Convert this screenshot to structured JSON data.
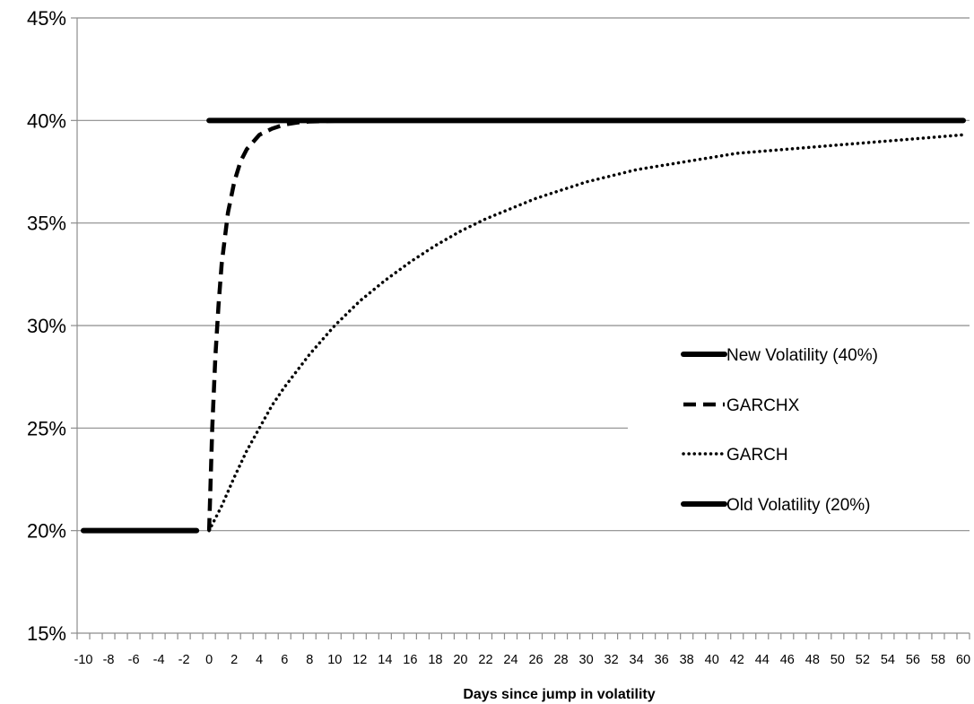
{
  "chart_data": {
    "type": "line",
    "title": "",
    "xlabel": "Days since jump in volatility",
    "ylabel": "",
    "xlim": [
      -10.5,
      60.5
    ],
    "ylim": [
      0.15,
      0.45
    ],
    "grid": true,
    "y_ticks": [
      {
        "value": 0.15,
        "label": "15%"
      },
      {
        "value": 0.2,
        "label": "20%"
      },
      {
        "value": 0.25,
        "label": "25%"
      },
      {
        "value": 0.3,
        "label": "30%"
      },
      {
        "value": 0.35,
        "label": "35%"
      },
      {
        "value": 0.4,
        "label": "40%"
      },
      {
        "value": 0.45,
        "label": "45%"
      }
    ],
    "x_ticks": [
      -10,
      -8,
      -6,
      -4,
      -2,
      0,
      2,
      4,
      6,
      8,
      10,
      12,
      14,
      16,
      18,
      20,
      22,
      24,
      26,
      28,
      30,
      32,
      34,
      36,
      38,
      40,
      42,
      44,
      46,
      48,
      50,
      52,
      54,
      56,
      58,
      60
    ],
    "legend_position": "center-right",
    "series": [
      {
        "name": "New Volatility (40%)",
        "style": "solid-thick",
        "color": "#000000",
        "x": [
          0,
          60
        ],
        "y": [
          0.4,
          0.4
        ]
      },
      {
        "name": "GARCHX",
        "style": "dashed",
        "color": "#000000",
        "x": [
          0,
          0.25,
          0.5,
          0.75,
          1,
          1.5,
          2,
          2.5,
          3,
          4,
          5,
          6,
          7,
          8,
          10,
          15,
          20,
          30,
          40,
          50,
          60
        ],
        "y": [
          0.2,
          0.25,
          0.285,
          0.31,
          0.33,
          0.355,
          0.37,
          0.38,
          0.386,
          0.393,
          0.396,
          0.398,
          0.399,
          0.3995,
          0.3998,
          0.4,
          0.4,
          0.4,
          0.4,
          0.4,
          0.4
        ]
      },
      {
        "name": "GARCH",
        "style": "dotted",
        "color": "#000000",
        "x": [
          0,
          1,
          2,
          3,
          4,
          5,
          6,
          8,
          10,
          12,
          14,
          16,
          18,
          20,
          22,
          24,
          26,
          28,
          30,
          32,
          34,
          36,
          38,
          40,
          42,
          44,
          46,
          48,
          50,
          52,
          54,
          56,
          58,
          60
        ],
        "y": [
          0.2,
          0.212,
          0.226,
          0.239,
          0.25,
          0.261,
          0.27,
          0.286,
          0.3,
          0.312,
          0.322,
          0.331,
          0.339,
          0.346,
          0.352,
          0.357,
          0.362,
          0.366,
          0.37,
          0.373,
          0.376,
          0.378,
          0.38,
          0.382,
          0.384,
          0.385,
          0.386,
          0.387,
          0.388,
          0.389,
          0.39,
          0.391,
          0.392,
          0.393
        ]
      },
      {
        "name": "Old Volatility (20%)",
        "style": "solid-thick",
        "color": "#000000",
        "x": [
          -10,
          -1
        ],
        "y": [
          0.2,
          0.2
        ]
      }
    ]
  }
}
